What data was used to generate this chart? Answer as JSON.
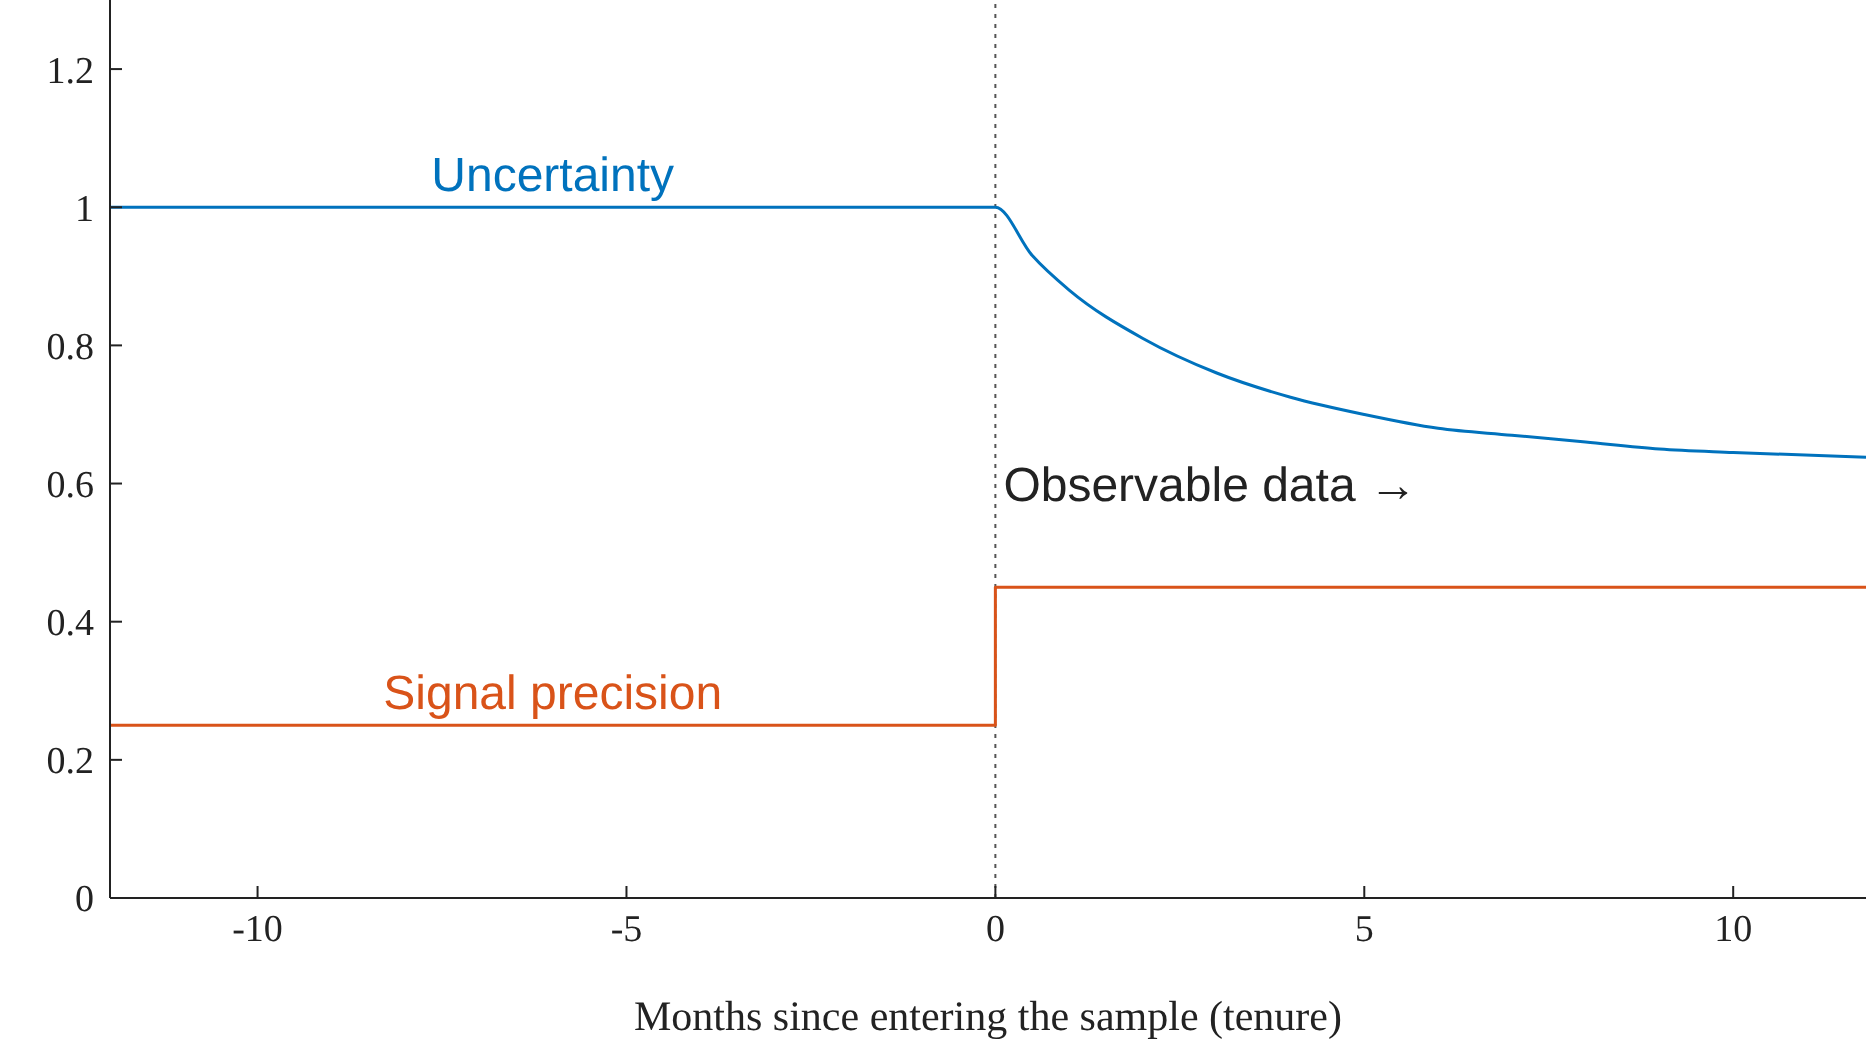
{
  "chart_data": {
    "type": "line",
    "xlabel": "Months since entering the sample (tenure)",
    "xlim": [
      -12,
      11.8
    ],
    "xticks": [
      -10,
      -5,
      0,
      5,
      10
    ],
    "ylim": [
      0,
      1.3
    ],
    "yticks": [
      0,
      0.2,
      0.4,
      0.6,
      0.8,
      1,
      1.2
    ],
    "series": [
      {
        "name": "Uncertainty",
        "color": "#0072bd",
        "x": [
          -12,
          0,
          0.5,
          1,
          2,
          3,
          4,
          5,
          6,
          7,
          8,
          9,
          10,
          11.8
        ],
        "values": [
          1,
          1,
          0.93,
          0.88,
          0.81,
          0.76,
          0.725,
          0.7,
          0.68,
          0.67,
          0.66,
          0.65,
          0.645,
          0.638
        ]
      },
      {
        "name": "Signal precision",
        "type": "step",
        "color": "#d95319",
        "x": [
          -12,
          0,
          11.8
        ],
        "values": [
          0.25,
          0.45,
          0.45
        ]
      }
    ],
    "ref_lines": [
      {
        "axis": "x",
        "value": 0,
        "line_style": "dotted",
        "color": "#555555"
      }
    ],
    "annotations": [
      {
        "text": "Observable data →",
        "x": 0,
        "y": 0.6
      }
    ],
    "grid": false,
    "legend": false,
    "marker": "none"
  }
}
